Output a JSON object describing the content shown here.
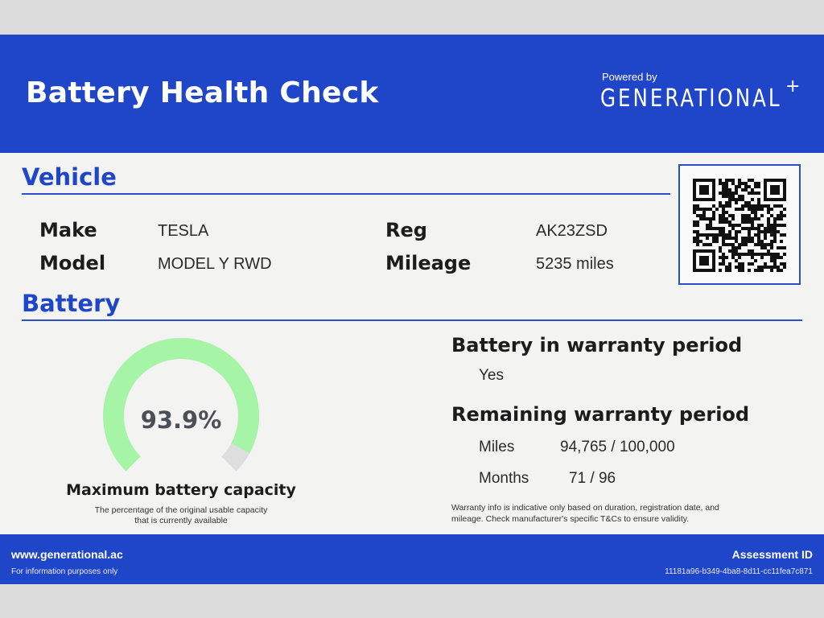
{
  "header": {
    "title": "Battery Health Check",
    "powered_by": "Powered by",
    "brand": "GENERATIONAL",
    "brand_plus": "+",
    "color": "#1f45c9"
  },
  "vehicle": {
    "section_title": "Vehicle",
    "make_label": "Make",
    "make_value": "TESLA",
    "model_label": "Model",
    "model_value": "MODEL Y RWD",
    "reg_label": "Reg",
    "reg_value": "AK23ZSD",
    "mileage_label": "Mileage",
    "mileage_value": "5235 miles"
  },
  "qr": {
    "icon": "qr-code-icon"
  },
  "battery": {
    "section_title": "Battery",
    "capacity_percent": 93.9,
    "capacity_text": "93.9%",
    "capacity_label": "Maximum battery capacity",
    "capacity_note_line1": "The percentage of the original usable capacity",
    "capacity_note_line2": "that is currently available",
    "gauge_fill_color": "#a6f5a6",
    "gauge_track_color": "#dedede"
  },
  "warranty": {
    "in_period_heading": "Battery in warranty period",
    "in_period_value": "Yes",
    "remaining_heading": "Remaining warranty period",
    "miles_label": "Miles",
    "miles_value": "94,765 / 100,000",
    "months_label": "Months",
    "months_value": "71 / 96",
    "note_line1": "Warranty info is indicative only based on duration, registration date, and",
    "note_line2": "mileage. Check manufacturer's specific T&Cs to ensure validity."
  },
  "footer": {
    "url": "www.generational.ac",
    "disclaimer": "For information purposes only",
    "assessment_label": "Assessment ID",
    "assessment_id": "11181a96-b349-4ba8-8d11-cc11fea7c871"
  }
}
